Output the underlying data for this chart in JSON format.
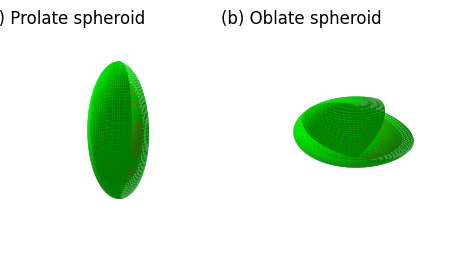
{
  "title_a": "(a) Prolate spheroid",
  "title_b": "(b) Oblate spheroid",
  "title_fontsize": 12,
  "bg_color": "#ffffff",
  "figure_size": [
    4.74,
    2.55
  ],
  "dpi": 100,
  "prolate": {
    "a": 0.9,
    "b": 0.9,
    "c": 1.35
  },
  "oblate": {
    "a": 1.15,
    "b": 1.15,
    "c": 0.78
  },
  "outer_scale": 1.0,
  "red_scale": 0.8,
  "core_scale": 0.74,
  "elev1": 18,
  "azim1": -65,
  "elev2": 22,
  "azim2": -60
}
